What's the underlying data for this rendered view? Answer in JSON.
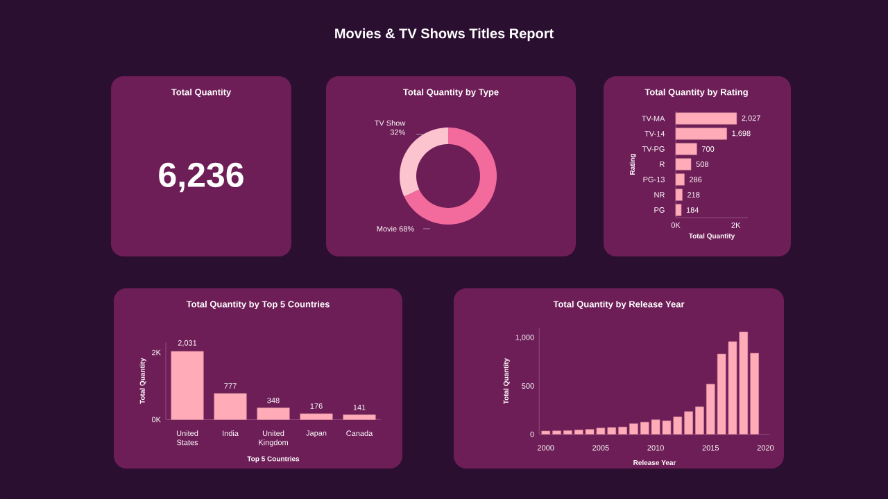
{
  "chart_data": [
    {
      "type": "other",
      "title": "Movies & TV Shows Titles Report"
    },
    {
      "type": "other",
      "title": "Total Quantity",
      "annotations": [
        "6,236"
      ]
    },
    {
      "type": "donut",
      "title": "Total Quantity by Type",
      "categories": [
        "TV Show",
        "Movie"
      ],
      "values": [
        32,
        68
      ],
      "colors": [
        "#fcc4cf",
        "#f36a9c"
      ],
      "value_labels": [
        "32%",
        "68%"
      ]
    },
    {
      "type": "bar",
      "orientation": "horizontal",
      "title": "Total Quantity by Rating",
      "xlabel": "Total Quantity",
      "ylabel": "Rating",
      "categories": [
        "TV-MA",
        "TV-14",
        "TV-PG",
        "R",
        "PG-13",
        "NR",
        "PG"
      ],
      "values": [
        2027,
        1698,
        700,
        508,
        286,
        218,
        184
      ],
      "color": "#ffabb8",
      "xlim": [
        0,
        2400
      ],
      "xticks": [
        {
          "value": 0,
          "label": "0K"
        },
        {
          "value": 2000,
          "label": "2K"
        }
      ],
      "value_labels": [
        "2,027",
        "1,698",
        "700",
        "508",
        "286",
        "218",
        "184"
      ]
    },
    {
      "type": "bar",
      "title": "Total Quantity by Top 5 Countries",
      "xlabel": "Top 5 Countries",
      "ylabel": "Total Quantity",
      "categories": [
        "United States",
        "India",
        "United Kingdom",
        "Japan",
        "Canada"
      ],
      "values": [
        2031,
        777,
        348,
        176,
        141
      ],
      "color": "#ffabb8",
      "ylim": [
        0,
        2300
      ],
      "yticks": [
        {
          "value": 0,
          "label": "0K"
        },
        {
          "value": 2000,
          "label": "2K"
        }
      ],
      "value_labels": [
        "2,031",
        "777",
        "348",
        "176",
        "141"
      ]
    },
    {
      "type": "bar",
      "title": "Total Quantity by Release Year",
      "xlabel": "Release Year",
      "ylabel": "Total Quantity",
      "x": [
        2000,
        2001,
        2002,
        2003,
        2004,
        2005,
        2006,
        2007,
        2008,
        2009,
        2010,
        2011,
        2012,
        2013,
        2014,
        2015,
        2016,
        2017,
        2018,
        2019
      ],
      "values": [
        33,
        35,
        38,
        45,
        50,
        65,
        70,
        75,
        110,
        125,
        150,
        140,
        180,
        235,
        285,
        520,
        830,
        960,
        1060,
        840
      ],
      "color": "#ffabb8",
      "xlim": [
        1999.4,
        2020.4
      ],
      "xticks": [
        2000,
        2005,
        2010,
        2015,
        2020
      ],
      "ylim": [
        0,
        1100
      ],
      "yticks": [
        0,
        500,
        {
          "value": 1000,
          "label": "1,000"
        }
      ]
    }
  ]
}
